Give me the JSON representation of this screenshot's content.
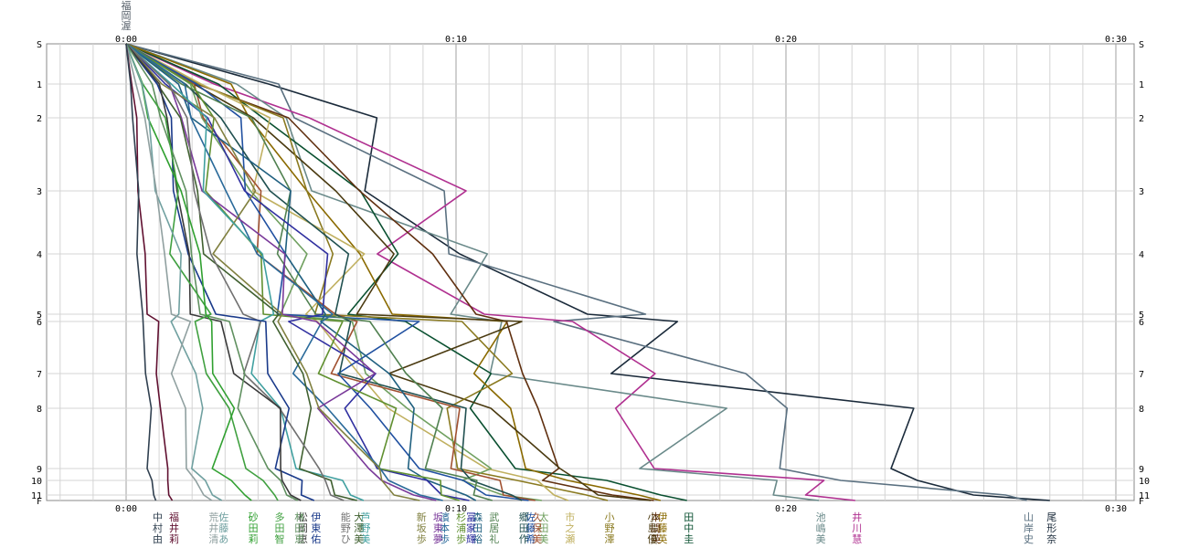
{
  "chart_data": {
    "type": "line",
    "x_ticks": [
      "0:00",
      "0:10",
      "0:20",
      "0:30"
    ],
    "y_ticks": [
      "S",
      "1",
      "2",
      "3",
      "4",
      "5",
      "6",
      "7",
      "8",
      "9",
      "10",
      "11",
      "F"
    ],
    "start_tag": [
      "福",
      "岡",
      "渥"
    ],
    "series": [
      {
        "color": "#1a2a3a",
        "end_min": 28.0,
        "label": [
          "尾",
          "形",
          "奈"
        ]
      },
      {
        "color": "#5a7080",
        "end_min": 27.3,
        "label": [
          "山",
          "岸",
          "史"
        ]
      },
      {
        "color": "#b03090",
        "end_min": 22.1,
        "label": [
          "井",
          "川",
          "慧"
        ]
      },
      {
        "color": "#6a8a8a",
        "end_min": 21.0,
        "label": [
          "池",
          "嶋",
          "美"
        ]
      },
      {
        "color": "#0a5030",
        "end_min": 17.0,
        "label": [
          "田",
          "中",
          "圭"
        ]
      },
      {
        "color": "#8a6a00",
        "end_min": 16.2,
        "label": [
          "伊",
          "藤",
          "英"
        ]
      },
      {
        "color": "#603010",
        "end_min": 16.0,
        "label": [
          "本",
          "間",
          "英"
        ]
      },
      {
        "color": "#4a3a10",
        "end_min": 15.9,
        "label": [
          "小",
          "島",
          "優"
        ]
      },
      {
        "color": "#8a7a20",
        "end_min": 14.6,
        "label": [
          "小",
          "野",
          "澤"
        ]
      },
      {
        "color": "#c0b060",
        "end_min": 13.4,
        "label": [
          "市",
          "之",
          "瀬"
        ]
      },
      {
        "color": "#70a060",
        "end_min": 12.6,
        "label": [
          "太",
          "田",
          "美"
        ]
      },
      {
        "color": "#a05030",
        "end_min": 12.4,
        "label": [
          "久",
          "保",
          "美"
        ]
      },
      {
        "color": "#2050a0",
        "end_min": 12.2,
        "label": [
          "佐",
          "藤",
          "希"
        ]
      },
      {
        "color": "#205050",
        "end_min": 12.0,
        "label": [
          "郷",
          "田",
          "作"
        ]
      },
      {
        "color": "#508050",
        "end_min": 11.1,
        "label": [
          "武",
          "居",
          "礼"
        ]
      },
      {
        "color": "#206080",
        "end_min": 10.6,
        "label": [
          "森",
          "田",
          "裕"
        ]
      },
      {
        "color": "#3030a0",
        "end_min": 10.4,
        "label": [
          "冨",
          "家",
          "輝"
        ]
      },
      {
        "color": "#609030",
        "end_min": 10.1,
        "label": [
          "杉",
          "浦",
          "歩"
        ]
      },
      {
        "color": "#2a6a9a",
        "end_min": 9.6,
        "label": [
          "濱",
          "本",
          "歩"
        ]
      },
      {
        "color": "#7a3a9a",
        "end_min": 9.4,
        "label": [
          "坂",
          "東",
          "夢"
        ]
      },
      {
        "color": "#808040",
        "end_min": 8.9,
        "label": [
          "新",
          "坂",
          "歩"
        ]
      },
      {
        "color": "#40a0a0",
        "end_min": 7.2,
        "label": [
          "芦",
          "野",
          "美"
        ]
      },
      {
        "color": "#406030",
        "end_min": 7.0,
        "label": [
          "大",
          "澤",
          "美"
        ]
      },
      {
        "color": "#707070",
        "end_min": 6.6,
        "label": [
          "能",
          "野",
          "ひ"
        ]
      },
      {
        "color": "#1a3a8a",
        "end_min": 5.7,
        "label": [
          "伊",
          "東",
          "佑"
        ]
      },
      {
        "color": "#3a3a3a",
        "end_min": 5.3,
        "label": [
          "松",
          "岡",
          "恵"
        ]
      },
      {
        "color": "#609060",
        "end_min": 5.2,
        "label": [
          "林",
          "田",
          "恵"
        ]
      },
      {
        "color": "#40a040",
        "end_min": 4.6,
        "label": [
          "多",
          "田",
          "智"
        ]
      },
      {
        "color": "#30a030",
        "end_min": 3.8,
        "label": [
          "砂",
          "田",
          "莉"
        ]
      },
      {
        "color": "#70a0a0",
        "end_min": 2.9,
        "label": [
          "佐",
          "藤",
          "あ"
        ]
      },
      {
        "color": "#90a0a0",
        "end_min": 2.6,
        "label": [
          "荒",
          "井",
          "清"
        ]
      },
      {
        "color": "#601030",
        "end_min": 1.4,
        "label": [
          "福",
          "井",
          "莉"
        ]
      },
      {
        "color": "#304050",
        "end_min": 0.9,
        "label": [
          "中",
          "村",
          "由"
        ]
      }
    ]
  }
}
